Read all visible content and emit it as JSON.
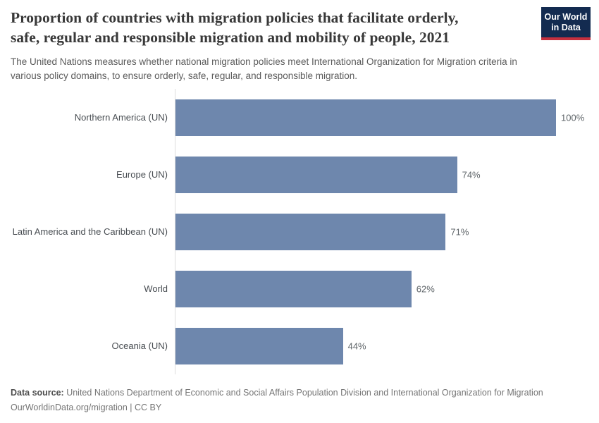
{
  "header": {
    "title_lines": [
      "Proportion of countries with migration policies that facilitate orderly,",
      "safe, regular and responsible migration and mobility of people, 2021"
    ],
    "subtitle_lines": [
      "The United Nations measures whether national migration policies meet International Organization for Migration criteria in",
      "various policy domains, to ensure orderly, safe, regular, and responsible migration."
    ],
    "logo": {
      "line1": "Our World",
      "line2": "in Data",
      "bg_color": "#132b50",
      "accent_color": "#c5303e",
      "text_color": "#ffffff"
    }
  },
  "chart_data": {
    "type": "bar",
    "orientation": "horizontal",
    "title": "Proportion of countries with migration policies that facilitate orderly, safe, regular and responsible migration and mobility of people, 2021",
    "subtitle": "The United Nations measures whether national migration policies meet International Organization for Migration criteria in various policy domains, to ensure orderly, safe, regular, and responsible migration.",
    "categories": [
      "Northern America (UN)",
      "Europe (UN)",
      "Latin America and the Caribbean (UN)",
      "World",
      "Oceania (UN)"
    ],
    "values": [
      100,
      74,
      71,
      62,
      44
    ],
    "value_labels": [
      "100%",
      "74%",
      "71%",
      "62%",
      "44%"
    ],
    "unit": "%",
    "xlim": [
      0,
      100
    ],
    "bar_color": "#6e87ad",
    "axis_line_color": "#dcdcdc",
    "grid": false,
    "legend": "none",
    "value_label_position": "outside-end"
  },
  "footer": {
    "datasource_label": "Data source:",
    "datasource_text": " United Nations Department of Economic and Social Affairs Population Division and International Organization for Migration",
    "url": "OurWorldinData.org/migration",
    "separator": " | ",
    "license": "CC BY"
  }
}
